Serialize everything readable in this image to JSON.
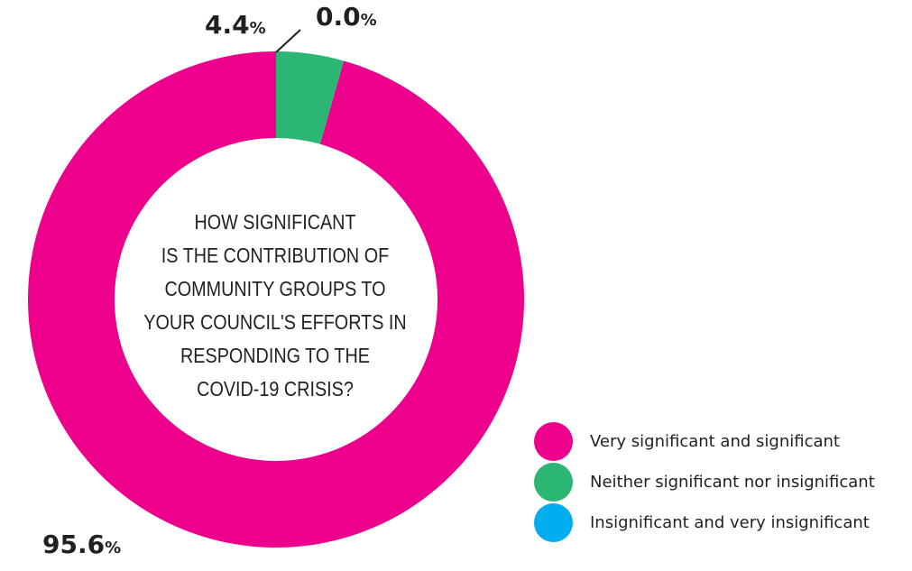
{
  "chart_data": {
    "type": "pie",
    "variant": "donut",
    "title_lines": [
      "HOW SIGNIFICANT",
      "IS THE CONTRIBUTION OF",
      "COMMUNITY GROUPS TO",
      "YOUR COUNCIL'S EFFORTS IN",
      "RESPONDING TO THE",
      "COVID-19 CRISIS?"
    ],
    "slices": [
      {
        "label": "Very significant and significant",
        "value": 95.6,
        "display": "95.6",
        "color": "#ec008c"
      },
      {
        "label": "Neither significant nor insignificant",
        "value": 4.4,
        "display": "4.4",
        "color": "#2bb673"
      },
      {
        "label": "Insignificant and very insignificant",
        "value": 0.0,
        "display": "0.0",
        "color": "#00aeef"
      }
    ],
    "percent_sign": "%",
    "legend_position": "bottom-right"
  }
}
